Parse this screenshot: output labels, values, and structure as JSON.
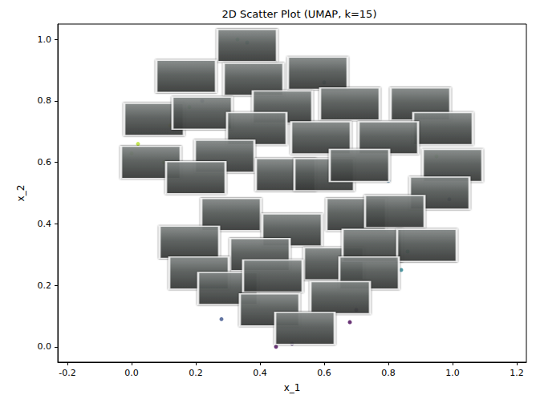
{
  "chart_data": {
    "type": "scatter",
    "title": "2D Scatter Plot (UMAP, k=15)",
    "x_label": "x_1",
    "y_label": "x_2",
    "xlim": [
      -0.23,
      1.23
    ],
    "ylim": [
      -0.05,
      1.05
    ],
    "xticks": [
      -0.2,
      {
        "value": 0,
        "label": "0.0"
      },
      0.2,
      0.4,
      0.6,
      0.8,
      {
        "value": 1,
        "label": "1.0"
      },
      1.2
    ],
    "yticks": [
      {
        "value": 0,
        "label": "0.0"
      },
      0.2,
      0.4,
      0.6,
      0.8,
      {
        "value": 1,
        "label": "1.0"
      }
    ],
    "grid": false,
    "series": [
      {
        "type": "scatter",
        "marker": "circle",
        "x": [
          0.36,
          0.33,
          0.02,
          0.0,
          0.18,
          0.22,
          0.12,
          0.62,
          0.8,
          0.86,
          0.84,
          0.45,
          0.5,
          0.95,
          0.99,
          0.1,
          0.6,
          0.7,
          0.68,
          0.28
        ],
        "y": [
          0.99,
          1.0,
          0.66,
          0.63,
          0.78,
          0.8,
          0.72,
          0.55,
          0.54,
          0.31,
          0.25,
          0.0,
          0.01,
          0.62,
          0.48,
          0.6,
          0.86,
          0.12,
          0.08,
          0.09
        ],
        "colors": [
          "#21918c",
          "#35b779",
          "#b5de2b",
          "#90d743",
          "#5ec962",
          "#3b528b",
          "#fde725",
          "#443983",
          "#31688e",
          "#1f9e89",
          "#26828e",
          "#440154",
          "#482878",
          "#6ece58",
          "#3e4989",
          "#addc30",
          "#2a788e",
          "#472d7b",
          "#440154",
          "#3b528b"
        ]
      },
      {
        "type": "scatter",
        "marker": "thumbnail",
        "x": [
          0.36,
          0.17,
          0.38,
          0.58,
          0.07,
          0.22,
          0.47,
          0.68,
          0.9,
          0.97,
          0.39,
          0.59,
          0.8,
          0.06,
          0.29,
          0.2,
          0.48,
          0.6,
          0.71,
          1.0,
          0.96,
          0.31,
          0.5,
          0.7,
          0.82,
          0.18,
          0.4,
          0.63,
          0.75,
          0.92,
          0.21,
          0.3,
          0.44,
          0.74,
          0.65,
          0.43,
          0.54
        ],
        "y": [
          0.98,
          0.88,
          0.87,
          0.89,
          0.74,
          0.76,
          0.78,
          0.79,
          0.79,
          0.71,
          0.71,
          0.68,
          0.68,
          0.6,
          0.62,
          0.55,
          0.56,
          0.56,
          0.59,
          0.59,
          0.5,
          0.43,
          0.38,
          0.43,
          0.44,
          0.34,
          0.3,
          0.27,
          0.33,
          0.33,
          0.24,
          0.19,
          0.23,
          0.24,
          0.16,
          0.12,
          0.06
        ]
      }
    ]
  }
}
